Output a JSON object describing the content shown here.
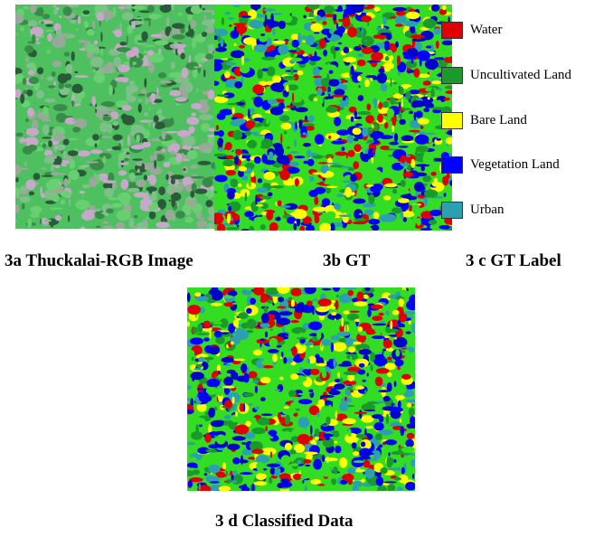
{
  "figures": [
    {
      "caption": "3a Thuckalai-RGB Image"
    },
    {
      "caption": "3b GT"
    },
    {
      "caption": "3 c GT Label"
    },
    {
      "caption": "3 d Classified Data"
    }
  ],
  "legend": {
    "items": [
      "Water",
      "Uncultivated Land",
      "Bare Land",
      "Vegetation Land",
      "Urban"
    ]
  }
}
